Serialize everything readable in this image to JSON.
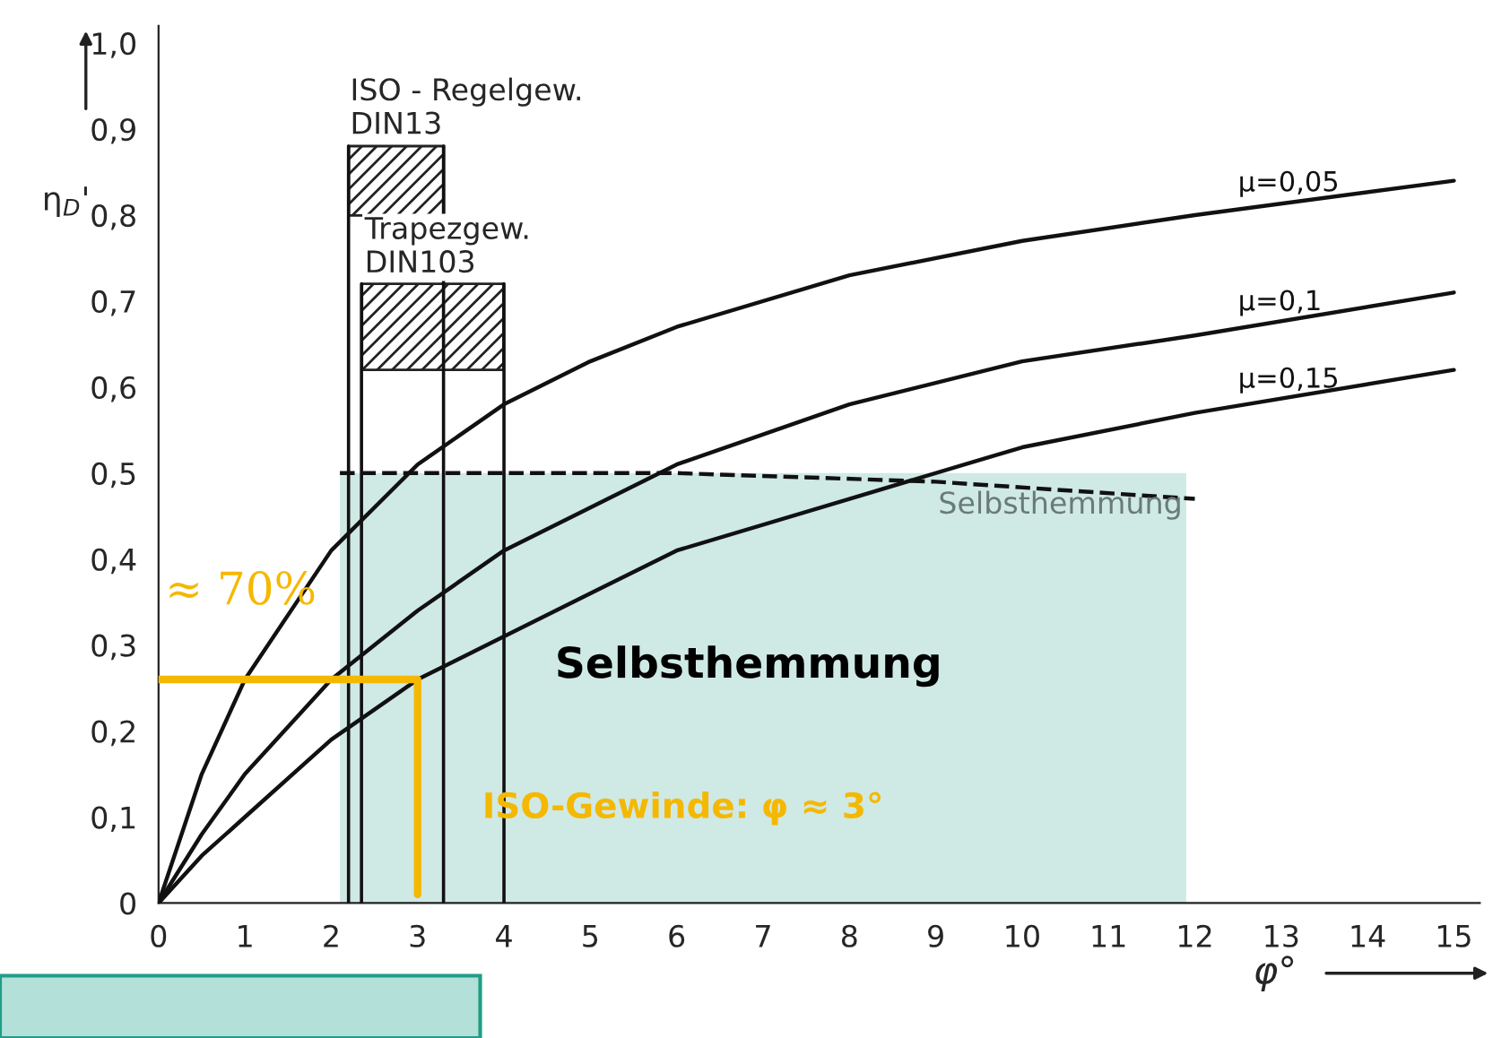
{
  "chart_data": {
    "type": "line",
    "xlabel": "φ°",
    "ylabel": "η$_{D}$'",
    "xlim": [
      0,
      15.3
    ],
    "ylim": [
      0,
      1.02
    ],
    "xticks": [
      0,
      1,
      2,
      3,
      4,
      5,
      6,
      7,
      8,
      9,
      10,
      11,
      12,
      13,
      14,
      15
    ],
    "yticks": [
      0,
      {
        "value": 0.1,
        "label": "0,1"
      },
      {
        "value": 0.2,
        "label": "0,2"
      },
      {
        "value": 0.3,
        "label": "0,3"
      },
      {
        "value": 0.4,
        "label": "0,4"
      },
      {
        "value": 0.5,
        "label": "0,5"
      },
      {
        "value": 0.6,
        "label": "0,6"
      },
      {
        "value": 0.7,
        "label": "0,7"
      },
      {
        "value": 0.8,
        "label": "0,8"
      },
      {
        "value": 0.9,
        "label": "0,9"
      },
      {
        "value": 1.0,
        "label": "1,0"
      }
    ],
    "legend": false,
    "marker": "none",
    "series": [
      {
        "type": "area",
        "color": "#cfe9e5",
        "x": [
          2.1,
          11.9
        ],
        "values": [
          0.5,
          0.5
        ]
      },
      {
        "name": "μ=0,05",
        "color": "#111111",
        "x": [
          0,
          0.5,
          1,
          2,
          3,
          4,
          5,
          6,
          8,
          10,
          12,
          15
        ],
        "values": [
          0,
          0.15,
          0.26,
          0.41,
          0.51,
          0.58,
          0.63,
          0.67,
          0.73,
          0.77,
          0.8,
          0.84
        ]
      },
      {
        "name": "μ=0,1",
        "color": "#111111",
        "x": [
          0,
          0.5,
          1,
          2,
          3,
          4,
          5,
          6,
          8,
          10,
          12,
          15
        ],
        "values": [
          0,
          0.08,
          0.15,
          0.26,
          0.34,
          0.41,
          0.46,
          0.51,
          0.58,
          0.63,
          0.66,
          0.71
        ]
      },
      {
        "name": "μ=0,15",
        "color": "#111111",
        "x": [
          0,
          0.5,
          1,
          2,
          3,
          4,
          5,
          6,
          8,
          10,
          12,
          15
        ],
        "values": [
          0,
          0.055,
          0.1,
          0.19,
          0.26,
          0.31,
          0.36,
          0.41,
          0.47,
          0.53,
          0.57,
          0.62
        ]
      },
      {
        "color": "#111111",
        "line_style": "dashed",
        "x": [
          2.1,
          6,
          9,
          12
        ],
        "values": [
          0.5,
          0.5,
          0.49,
          0.47
        ]
      },
      {
        "color": "#f5b800",
        "x": [
          0,
          3,
          3
        ],
        "values": [
          0.26,
          0.26,
          0.01
        ]
      }
    ],
    "ref_lines": [
      {
        "axis": "x",
        "value": 2.2,
        "color": "#111111"
      },
      {
        "axis": "x",
        "value": 2.35,
        "color": "#111111"
      },
      {
        "axis": "x",
        "value": 3.3,
        "color": "#111111"
      },
      {
        "axis": "x",
        "value": 4.0,
        "color": "#111111"
      }
    ],
    "annotations": [
      "ISO - Regelgew.\nDIN13",
      "Trapezgew.\nDIN103",
      "Selbsthemmung",
      "Selbsthemmung",
      "≈ 70%",
      "ISO-Gewinde: φ ≈ 3°"
    ]
  }
}
